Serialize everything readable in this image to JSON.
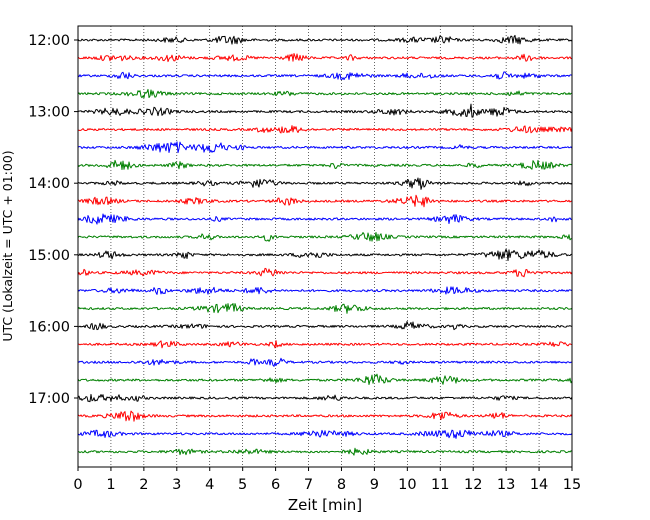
{
  "chart_data": {
    "type": "line",
    "title": "",
    "xlabel": "Zeit  [min]",
    "ylabel": "UTC (Lokalzeit = UTC + 01:00)",
    "xlim": [
      0,
      15
    ],
    "x_ticks": [
      "0",
      "1",
      "2",
      "3",
      "4",
      "5",
      "6",
      "7",
      "8",
      "9",
      "10",
      "11",
      "12",
      "13",
      "14",
      "15"
    ],
    "y_time_start": "12:00",
    "y_ticks": [
      "12:00",
      "13:00",
      "14:00",
      "15:00",
      "16:00",
      "17:00"
    ],
    "trace_interval_minutes": 15,
    "trace_count": 24,
    "trace_colors": [
      "#000000",
      "#ff0000",
      "#0000ff",
      "#008000"
    ],
    "grid": "vertical-dotted",
    "legend": "none"
  }
}
